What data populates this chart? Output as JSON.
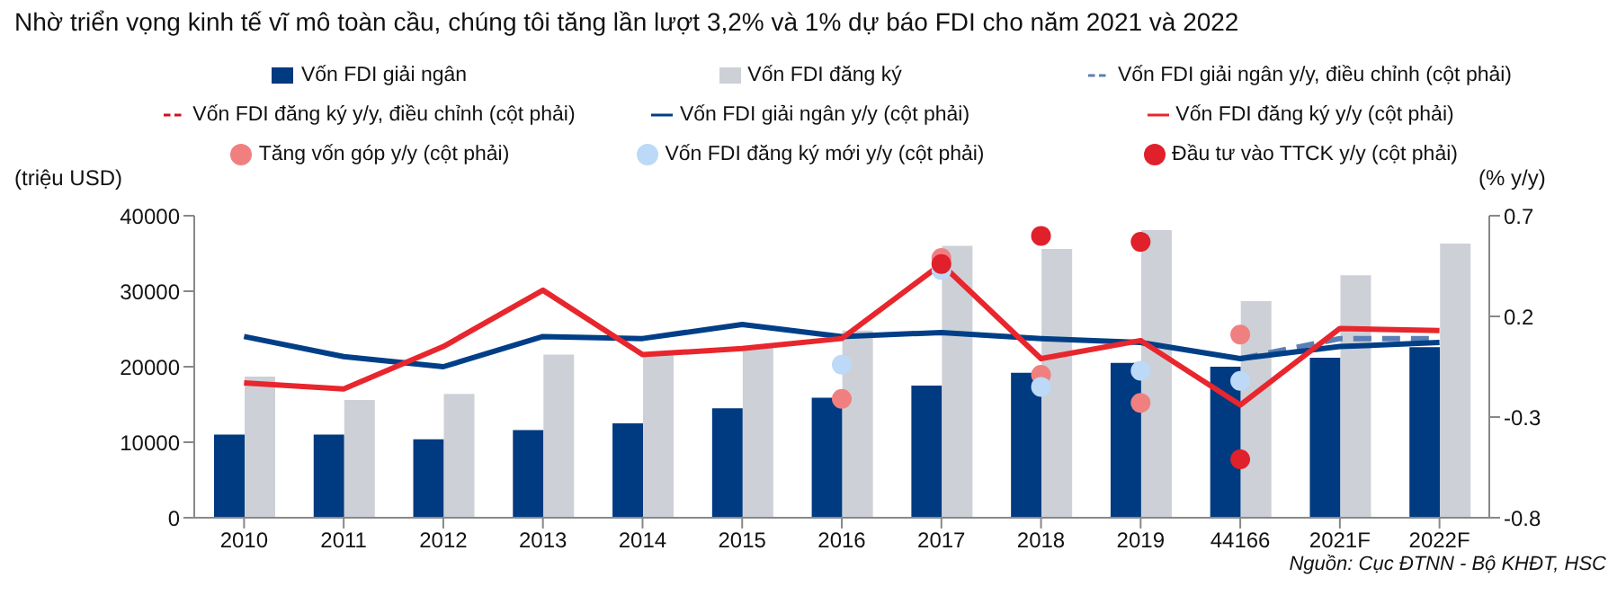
{
  "chart_data": {
    "type": "bar",
    "title": "Nhờ triển vọng kinh tế vĩ mô toàn cầu, chúng tôi tăng lần lượt 3,2% và 1% dự báo FDI cho năm 2021 và 2022",
    "ylabel": "(triệu USD)",
    "y2label": "(% y/y)",
    "annotations": [
      "Nguồn: Cục ĐTNN - Bộ KHĐT, HSC"
    ],
    "categories": [
      "2010",
      "2011",
      "2012",
      "2013",
      "2014",
      "2015",
      "2016",
      "2017",
      "2018",
      "2019",
      "44166",
      "2021F",
      "2022F"
    ],
    "series": [
      {
        "name": "Vốn FDI giải ngân",
        "color": "#003a80",
        "values": [
          11000,
          11000,
          10400,
          11600,
          12500,
          14500,
          15900,
          17500,
          19200,
          20500,
          20000,
          21200,
          22600
        ]
      },
      {
        "name": "Vốn FDI đăng ký",
        "color": "#cdd0d6",
        "values": [
          18700,
          15600,
          16400,
          21600,
          21900,
          22500,
          24800,
          36000,
          35600,
          38100,
          28700,
          32100,
          36300
        ]
      },
      {
        "name": "Vốn FDI giải ngân y/y, điều chỉnh (cột phải)",
        "type": "line",
        "axis": "y2",
        "line_style": "dashed",
        "marker": "none",
        "color": "#5b7fb5",
        "values": [
          null,
          null,
          null,
          null,
          null,
          null,
          null,
          null,
          null,
          null,
          -0.01,
          0.09,
          0.09
        ]
      },
      {
        "name": "Vốn FDI đăng ký y/y, điều chỉnh (cột phải)",
        "type": "line",
        "axis": "y2",
        "line_style": "dashed",
        "marker": "none",
        "color": "#d0121b",
        "values": [
          null,
          null,
          null,
          null,
          null,
          null,
          null,
          null,
          null,
          null,
          null,
          null,
          null
        ]
      },
      {
        "name": "Vốn FDI giải ngân y/y (cột phải)",
        "type": "line",
        "axis": "y2",
        "line_style": "solid",
        "marker": "none",
        "color": "#003f87",
        "values": [
          0.1,
          0.0,
          -0.05,
          0.1,
          0.09,
          0.16,
          0.1,
          0.12,
          0.09,
          0.07,
          -0.01,
          0.05,
          0.07
        ]
      },
      {
        "name": "Vốn FDI đăng ký y/y (cột phải)",
        "type": "line",
        "axis": "y2",
        "line_style": "solid",
        "marker": "none",
        "color": "#e8262d",
        "values": [
          -0.13,
          -0.16,
          0.05,
          0.33,
          0.01,
          0.04,
          0.09,
          0.46,
          -0.01,
          0.08,
          -0.24,
          0.14,
          0.13
        ]
      },
      {
        "name": "Tăng vốn góp y/y (cột phải)",
        "type": "scatter",
        "axis": "y2",
        "marker": "circle",
        "color": "#f08080",
        "values": [
          null,
          null,
          null,
          null,
          null,
          null,
          -0.21,
          0.49,
          -0.09,
          -0.23,
          0.11,
          null,
          null
        ]
      },
      {
        "name": "Vốn FDI đăng ký mới y/y (cột phải)",
        "type": "scatter",
        "axis": "y2",
        "marker": "circle",
        "color": "#bcd9f7",
        "values": [
          null,
          null,
          null,
          null,
          null,
          null,
          -0.04,
          0.43,
          -0.15,
          -0.07,
          -0.12,
          null,
          null
        ]
      },
      {
        "name": "Đầu tư vào TTCK y/y (cột phải)",
        "type": "scatter",
        "axis": "y2",
        "marker": "circle",
        "color": "#e0202a",
        "values": [
          null,
          null,
          null,
          null,
          null,
          null,
          null,
          0.46,
          0.6,
          0.57,
          -0.51,
          null,
          null
        ]
      }
    ],
    "ylim": [
      0,
      40000
    ],
    "yticks": [
      0,
      10000,
      20000,
      30000,
      40000
    ],
    "y2lim": [
      -0.8,
      0.7
    ],
    "y2ticks": [
      -0.8,
      -0.3,
      0.2,
      0.7
    ],
    "legend": "top",
    "grid": false
  }
}
